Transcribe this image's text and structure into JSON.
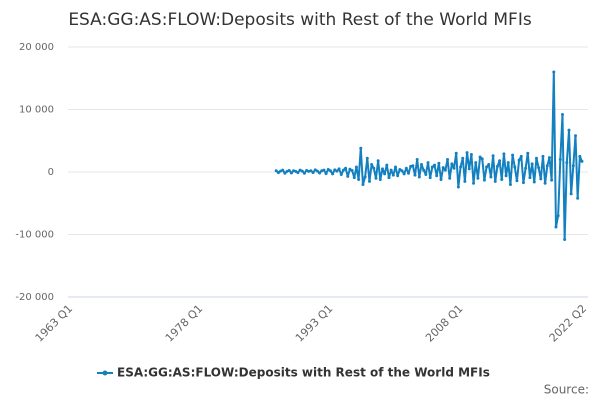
{
  "chart_data": {
    "type": "line",
    "title": "ESA:GG:AS:FLOW:Deposits with Rest of the World MFIs",
    "source": "Source:",
    "legend": "bottom",
    "grid": true,
    "ylim": [
      -20000,
      20000
    ],
    "yticks": [
      {
        "value": 20000,
        "label": "20 000"
      },
      {
        "value": 10000,
        "label": "10 000"
      },
      0,
      {
        "value": -10000,
        "label": "-10 000"
      },
      {
        "value": -20000,
        "label": "-20 000"
      }
    ],
    "categories": [
      "1963 Q1",
      null,
      null,
      null,
      null,
      null,
      null,
      null,
      null,
      null,
      null,
      null,
      null,
      null,
      null,
      null,
      null,
      null,
      null,
      null,
      null,
      null,
      null,
      null,
      null,
      null,
      null,
      null,
      null,
      null,
      null,
      null,
      null,
      null,
      null,
      null,
      null,
      null,
      null,
      null,
      null,
      null,
      null,
      null,
      null,
      null,
      null,
      null,
      null,
      null,
      null,
      null,
      null,
      null,
      null,
      null,
      null,
      null,
      null,
      null,
      "1978 Q1",
      null,
      null,
      null,
      null,
      null,
      null,
      null,
      null,
      null,
      null,
      null,
      null,
      null,
      null,
      null,
      null,
      null,
      null,
      null,
      null,
      null,
      null,
      null,
      null,
      null,
      null,
      null,
      null,
      null,
      null,
      null,
      null,
      null,
      null,
      null,
      null,
      null,
      null,
      null,
      null,
      null,
      null,
      null,
      null,
      null,
      null,
      null,
      null,
      null,
      null,
      null,
      null,
      null,
      null,
      null,
      null,
      null,
      null,
      null,
      "1993 Q1",
      null,
      null,
      null,
      null,
      null,
      null,
      null,
      null,
      null,
      null,
      null,
      null,
      null,
      null,
      null,
      null,
      null,
      null,
      null,
      null,
      null,
      null,
      null,
      null,
      null,
      null,
      null,
      null,
      null,
      null,
      null,
      null,
      null,
      null,
      null,
      null,
      null,
      null,
      null,
      null,
      null,
      null,
      null,
      null,
      null,
      null,
      null,
      null,
      null,
      null,
      null,
      null,
      null,
      null,
      null,
      null,
      null,
      null,
      null,
      "2008 Q1",
      null,
      null,
      null,
      null,
      null,
      null,
      null,
      null,
      null,
      null,
      null,
      null,
      null,
      null,
      null,
      null,
      null,
      null,
      null,
      null,
      null,
      null,
      null,
      null,
      null,
      null,
      null,
      null,
      null,
      null,
      null,
      null,
      null,
      null,
      null,
      null,
      null,
      null,
      null,
      null,
      null,
      null,
      null,
      null,
      null,
      null,
      null,
      null,
      null,
      null,
      null,
      null,
      null,
      null,
      null,
      null,
      "2022 Q2"
    ],
    "series": [
      {
        "name": "ESA:GG:AS:FLOW:Deposits with Rest of the World MFIs",
        "color": "#1380c0",
        "values": [
          null,
          null,
          null,
          null,
          null,
          null,
          null,
          null,
          null,
          null,
          null,
          null,
          null,
          null,
          null,
          null,
          null,
          null,
          null,
          null,
          null,
          null,
          null,
          null,
          null,
          null,
          null,
          null,
          null,
          null,
          null,
          null,
          null,
          null,
          null,
          null,
          null,
          null,
          null,
          null,
          null,
          null,
          null,
          null,
          null,
          null,
          null,
          null,
          null,
          null,
          null,
          null,
          null,
          null,
          null,
          null,
          null,
          null,
          null,
          null,
          null,
          null,
          null,
          null,
          null,
          null,
          null,
          null,
          null,
          null,
          null,
          null,
          null,
          null,
          null,
          null,
          null,
          null,
          null,
          null,
          null,
          null,
          null,
          null,
          null,
          null,
          null,
          null,
          null,
          null,
          null,
          null,
          null,
          null,
          null,
          null,
          200,
          -100,
          150,
          300,
          -200,
          100,
          250,
          -150,
          200,
          100,
          -100,
          300,
          150,
          -200,
          250,
          100,
          200,
          -100,
          350,
          150,
          -150,
          200,
          300,
          -250,
          400,
          200,
          -300,
          350,
          150,
          500,
          -400,
          300,
          600,
          -700,
          450,
          250,
          -900,
          800,
          -1200,
          3800,
          -2000,
          -800,
          2200,
          -1500,
          1200,
          600,
          -1000,
          1800,
          -1200,
          500,
          -300,
          1100,
          -900,
          300,
          -500,
          800,
          -600,
          400,
          200,
          -300,
          600,
          -200,
          900,
          1000,
          -500,
          2000,
          -800,
          1200,
          300,
          -400,
          1500,
          -900,
          800,
          1100,
          -600,
          1400,
          -1200,
          700,
          300,
          2000,
          -1000,
          1300,
          600,
          3000,
          -2400,
          800,
          2200,
          -1500,
          3100,
          500,
          2800,
          -1800,
          1500,
          -1000,
          2400,
          2100,
          -1300,
          800,
          1200,
          -800,
          2600,
          -1500,
          900,
          1800,
          -1200,
          2900,
          -600,
          1500,
          -2000,
          2700,
          800,
          -1400,
          1900,
          2500,
          -1700,
          600,
          3000,
          -900,
          1300,
          -1600,
          2200,
          700,
          -1100,
          2500,
          -1800,
          1000,
          2300,
          -1300,
          16000,
          -8800,
          -7000,
          2000,
          9200,
          -10800,
          1500,
          6700,
          -3500,
          1000,
          5800,
          -4200,
          2500,
          1700
        ]
      }
    ]
  }
}
